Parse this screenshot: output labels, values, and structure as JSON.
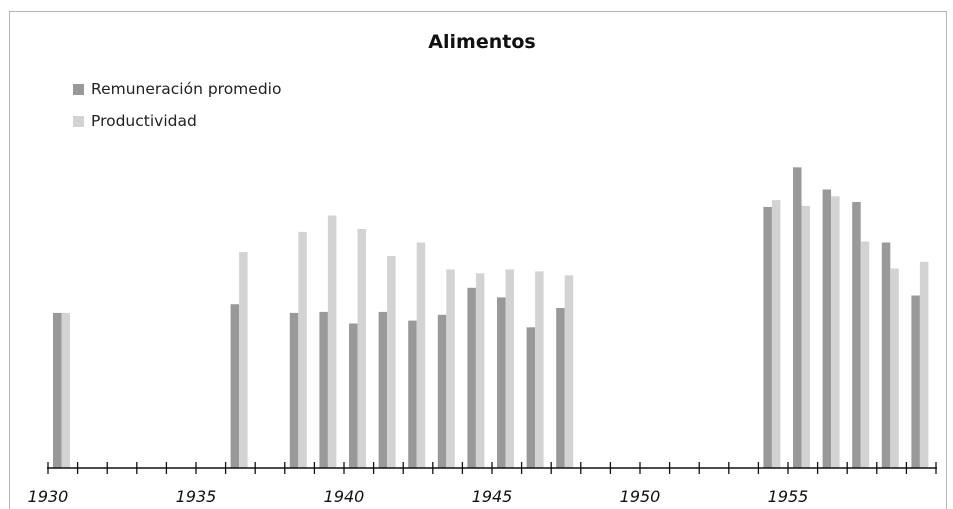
{
  "chart_data": {
    "type": "bar",
    "title": "Alimentos",
    "xlabel": "",
    "ylabel": "",
    "legend_position": "top-left",
    "grid": false,
    "x": [
      1930,
      1936,
      1938,
      1939,
      1940,
      1941,
      1942,
      1943,
      1944,
      1945,
      1946,
      1947,
      1954,
      1955,
      1956,
      1957,
      1958,
      1959
    ],
    "x_range": [
      1930,
      1959
    ],
    "x_ticks": [
      1930,
      1935,
      1940,
      1945,
      1950,
      1955
    ],
    "ylim": [
      0,
      330
    ],
    "colors": {
      "Remuneración promedio": "#999999",
      "Productividad": "#d3d3d3"
    },
    "series": [
      {
        "name": "Remuneración promedio",
        "values": [
          161,
          170,
          161,
          162,
          150,
          162,
          153,
          159,
          187,
          177,
          146,
          166,
          271,
          312,
          289,
          276,
          234,
          179
        ]
      },
      {
        "name": "Productividad",
        "values": [
          161,
          224,
          245,
          262,
          248,
          220,
          234,
          206,
          202,
          206,
          204,
          200,
          278,
          272,
          282,
          235,
          207,
          214
        ]
      }
    ]
  }
}
